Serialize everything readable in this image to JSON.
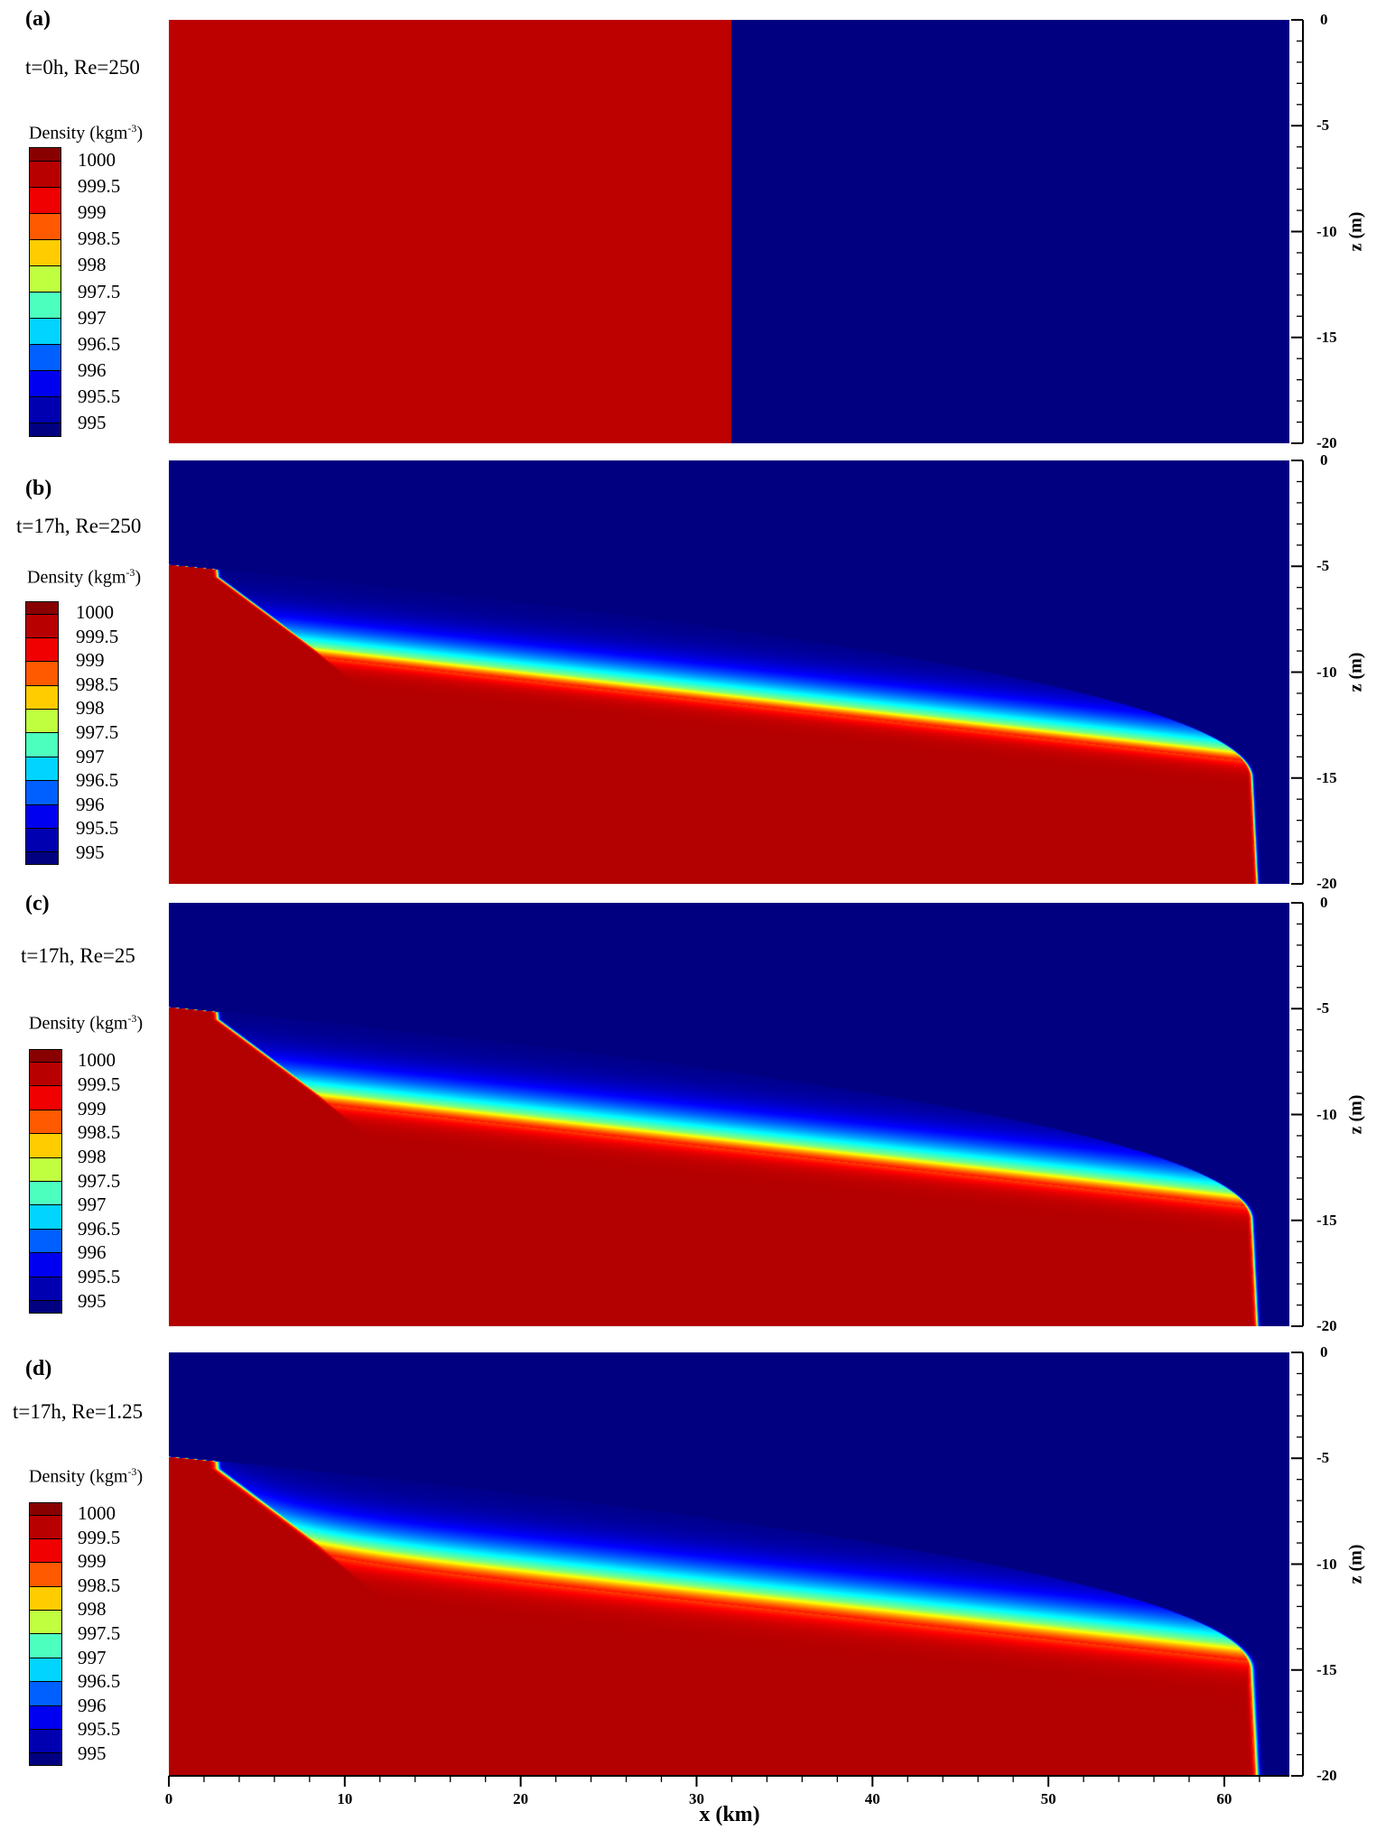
{
  "chart_data": [
    {
      "type": "heatmap",
      "panel": "(a)",
      "title": "t=0h, Re=250",
      "variable": "Density",
      "unit_label": "Density (kgm",
      "unit_sup": "-3",
      "unit_close": ")",
      "time_h": 0,
      "Re": 250,
      "description_values": {
        "dense_region_x_km": [
          0,
          32
        ],
        "dense_density": 1000,
        "light_density": 995
      }
    },
    {
      "type": "heatmap",
      "panel": "(b)",
      "title": "t=17h, Re=250",
      "variable": "Density",
      "unit_label": "Density (kgm",
      "unit_sup": "-3",
      "unit_close": ")",
      "time_h": 17,
      "Re": 250
    },
    {
      "type": "heatmap",
      "panel": "(c)",
      "title": "t=17h, Re=25",
      "variable": "Density",
      "unit_label": "Density (kgm",
      "unit_sup": "-3",
      "unit_close": ")",
      "time_h": 17,
      "Re": 25
    },
    {
      "type": "heatmap",
      "panel": "(d)",
      "title": "t=17h, Re=1.25",
      "variable": "Density",
      "unit_label": "Density (kgm",
      "unit_sup": "-3",
      "unit_close": ")",
      "time_h": 17,
      "Re": 1.25
    }
  ],
  "colorbar": {
    "levels": [
      "1000",
      "999.5",
      "999",
      "998.5",
      "998",
      "997.5",
      "997",
      "996.5",
      "996",
      "995.5",
      "995"
    ],
    "colors": [
      "#880000",
      "#b80000",
      "#f00000",
      "#ff5a00",
      "#ffcc00",
      "#bfff40",
      "#4dffbf",
      "#00d4ff",
      "#0060ff",
      "#0000f0",
      "#0000b0",
      "#000080"
    ]
  },
  "x_axis": {
    "label": "x (km)",
    "ticks": [
      "0",
      "10",
      "20",
      "30",
      "40",
      "50",
      "60"
    ],
    "range": [
      0,
      63.7
    ],
    "minor_step": 2
  },
  "z_axis": {
    "label": "z (m)",
    "ticks": [
      "0",
      "-5",
      "-10",
      "-15",
      "-20"
    ],
    "range": [
      -20,
      0
    ],
    "minor_step": 1
  }
}
